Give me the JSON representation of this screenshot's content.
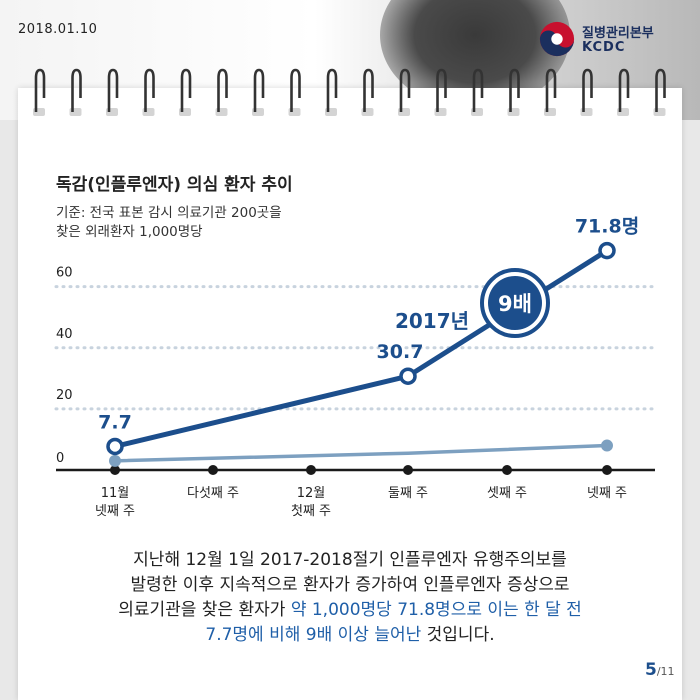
{
  "header": {
    "date": "2018.01.10",
    "org_ko": "질병관리본부",
    "org_en": "KCDC"
  },
  "chart_data": {
    "type": "line",
    "title": "독감(인플루엔자) 의심 환자 추이",
    "note_line1": "기준: 전국 표본 감시 의료기관 200곳을",
    "note_line2": "찾은 외래환자 1,000명당",
    "categories": [
      "11월 넷째 주",
      "다섯째 주",
      "12월 첫째 주",
      "둘째 주",
      "셋째 주",
      "넷째 주"
    ],
    "category_lines": [
      [
        "11월",
        "넷째 주"
      ],
      [
        "다섯째 주"
      ],
      [
        "12월",
        "첫째 주"
      ],
      [
        "둘째 주"
      ],
      [
        "셋째 주"
      ],
      [
        "넷째 주"
      ]
    ],
    "yticks": [
      0,
      20,
      40,
      60
    ],
    "ylim": [
      0,
      72
    ],
    "series": [
      {
        "name": "2017년",
        "color": "#1c4e8c",
        "values": [
          7.7,
          null,
          null,
          30.7,
          null,
          71.8
        ]
      },
      {
        "color": "#7da0c0",
        "values": [
          3,
          null,
          null,
          5.5,
          null,
          8
        ]
      }
    ],
    "data_labels": [
      "7.7",
      "30.7",
      "71.8명"
    ],
    "annotation": "9배",
    "grid": "dotted"
  },
  "body": {
    "line1": "지난해 12월 1일 2017-2018절기 인플루엔자 유행주의보를",
    "line2": "발령한 이후 지속적으로 환자가 증가하여 인플루엔자 증상으로",
    "line3_a": "의료기관을 찾은 환자가 ",
    "line3_b": "약 1,000명당 71.8명으로 이는 한 달 전",
    "line4_a": "7.7명에 비해 9배 이상 늘어난",
    "line4_b": " 것입니다."
  },
  "page": {
    "current": "5",
    "total": "/11"
  },
  "colors": {
    "primary": "#1c4e8c",
    "secondary": "#7da0c0",
    "highlight": "#1f5fa8"
  }
}
